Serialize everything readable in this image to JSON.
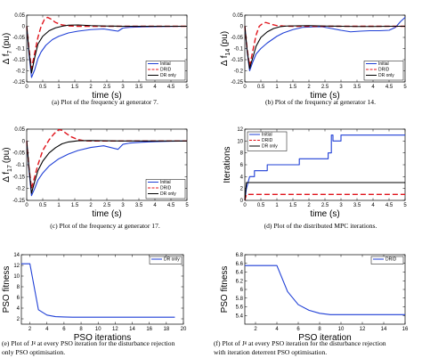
{
  "chart_data": [
    {
      "type": "line",
      "id": "a",
      "caption": "(a) Plot of the frequency at generator 7.",
      "xlabel": "time (s)",
      "ylabel": "Δ f",
      "ylabel_sub": "7",
      "ylabel_unit": "(pu)",
      "xlim": [
        0,
        5
      ],
      "ylim": [
        -0.25,
        0.05
      ],
      "xticks": [
        "0",
        "0.5",
        "1",
        "1.5",
        "2",
        "2.5",
        "3",
        "3.5",
        "4",
        "4.5",
        "5"
      ],
      "yticks": [
        "-0.25",
        "-0.2",
        "-0.15",
        "-0.1",
        "-0.05",
        "0",
        "0.05"
      ],
      "grid": false,
      "legend_position": "bottom-right",
      "series": [
        {
          "name": "Initial",
          "color": "#1f3fd6",
          "dash": "solid",
          "x": [
            0,
            0.07,
            0.15,
            0.25,
            0.35,
            0.45,
            0.6,
            0.8,
            1.0,
            1.3,
            1.6,
            2.0,
            2.4,
            2.85,
            3.0,
            3.2,
            3.6,
            4.0,
            4.5,
            5.0
          ],
          "y": [
            0,
            -0.12,
            -0.23,
            -0.195,
            -0.145,
            -0.115,
            -0.085,
            -0.06,
            -0.045,
            -0.03,
            -0.022,
            -0.015,
            -0.012,
            -0.022,
            -0.008,
            -0.005,
            -0.003,
            -0.002,
            -0.001,
            0
          ]
        },
        {
          "name": "DRID",
          "color": "#e0141c",
          "dash": "6,3",
          "x": [
            0,
            0.07,
            0.15,
            0.25,
            0.35,
            0.45,
            0.55,
            0.65,
            0.75,
            0.9,
            1.1,
            1.3,
            1.6,
            2.0,
            2.5,
            3.0,
            4.0,
            5.0
          ],
          "y": [
            0,
            -0.1,
            -0.19,
            -0.12,
            -0.05,
            0.0,
            0.03,
            0.04,
            0.033,
            0.017,
            0.006,
            0.002,
            0.0,
            0.0,
            0.0,
            0.0,
            0.0,
            0.0
          ]
        },
        {
          "name": "DR only",
          "color": "#000000",
          "dash": "solid",
          "x": [
            0,
            0.07,
            0.15,
            0.25,
            0.35,
            0.5,
            0.7,
            0.9,
            1.1,
            1.3,
            1.6,
            2.0,
            2.5,
            3.0,
            4.0,
            5.0
          ],
          "y": [
            0,
            -0.11,
            -0.21,
            -0.14,
            -0.08,
            -0.045,
            -0.02,
            -0.007,
            0.0,
            0.005,
            0.006,
            0.003,
            0.001,
            0.0,
            0.0,
            0.0
          ]
        }
      ]
    },
    {
      "type": "line",
      "id": "b",
      "caption": "(b) Plot of the frequency at generator 14.",
      "xlabel": "time (s)",
      "ylabel": "Δ f",
      "ylabel_sub": "14",
      "ylabel_unit": "(pu)",
      "xlim": [
        0,
        5
      ],
      "ylim": [
        -0.25,
        0.05
      ],
      "xticks": [
        "0",
        "0.5",
        "1",
        "1.5",
        "2",
        "2.5",
        "3",
        "3.5",
        "4",
        "4.5",
        "5"
      ],
      "yticks": [
        "-0.25",
        "-0.2",
        "-0.15",
        "-0.1",
        "-0.05",
        "0",
        "0.05"
      ],
      "grid": false,
      "legend_position": "bottom-right",
      "series": [
        {
          "name": "Initial",
          "color": "#1f3fd6",
          "dash": "solid",
          "x": [
            0,
            0.07,
            0.15,
            0.25,
            0.35,
            0.5,
            0.7,
            1.0,
            1.2,
            1.5,
            1.8,
            2.1,
            2.4,
            2.7,
            3.0,
            3.3,
            3.6,
            3.9,
            4.2,
            4.5,
            4.7,
            4.85,
            5.0
          ],
          "y": [
            0,
            -0.11,
            -0.2,
            -0.16,
            -0.125,
            -0.1,
            -0.075,
            -0.045,
            -0.03,
            -0.015,
            -0.005,
            -0.003,
            -0.002,
            -0.01,
            -0.018,
            -0.025,
            -0.022,
            -0.02,
            -0.02,
            -0.018,
            -0.005,
            0.02,
            0.04
          ]
        },
        {
          "name": "DRID",
          "color": "#e0141c",
          "dash": "6,3",
          "x": [
            0,
            0.07,
            0.15,
            0.25,
            0.35,
            0.45,
            0.55,
            0.65,
            0.75,
            0.85,
            1.0,
            1.2,
            1.5,
            2.0,
            3.0,
            4.0,
            5.0
          ],
          "y": [
            0,
            -0.1,
            -0.18,
            -0.11,
            -0.04,
            0.0,
            0.012,
            0.017,
            0.013,
            0.008,
            0.003,
            0.001,
            0.0,
            0.0,
            0.0,
            0.0,
            0.0
          ]
        },
        {
          "name": "DR only",
          "color": "#000000",
          "dash": "solid",
          "x": [
            0,
            0.07,
            0.15,
            0.25,
            0.35,
            0.5,
            0.7,
            0.9,
            1.1,
            1.3,
            1.6,
            2.0,
            2.5,
            3.0,
            3.5,
            4.0,
            4.5,
            5.0
          ],
          "y": [
            0,
            -0.105,
            -0.19,
            -0.14,
            -0.09,
            -0.05,
            -0.025,
            -0.01,
            -0.002,
            0.001,
            0.002,
            0.003,
            0.001,
            0.0,
            -0.001,
            -0.001,
            0.0,
            0.0
          ]
        }
      ]
    },
    {
      "type": "line",
      "id": "c",
      "caption": "(c) Plot of the frequency at generator 17.",
      "xlabel": "time (s)",
      "ylabel": "Δ f",
      "ylabel_sub": "17",
      "ylabel_unit": "(pu)",
      "xlim": [
        0,
        5
      ],
      "ylim": [
        -0.25,
        0.05
      ],
      "xticks": [
        "0",
        "0.5",
        "1",
        "1.5",
        "2",
        "2.5",
        "3",
        "3.5",
        "4",
        "4.5",
        "5"
      ],
      "yticks": [
        "-0.25",
        "-0.2",
        "-0.15",
        "-0.1",
        "-0.05",
        "0",
        "0.05"
      ],
      "grid": false,
      "legend_position": "bottom-right",
      "series": [
        {
          "name": "Initial",
          "color": "#1f3fd6",
          "dash": "solid",
          "x": [
            0,
            0.07,
            0.15,
            0.25,
            0.35,
            0.5,
            0.7,
            1.0,
            1.3,
            1.6,
            2.0,
            2.4,
            2.85,
            3.0,
            3.2,
            3.6,
            4.0,
            4.5,
            5.0
          ],
          "y": [
            0,
            -0.12,
            -0.23,
            -0.2,
            -0.165,
            -0.135,
            -0.105,
            -0.075,
            -0.055,
            -0.04,
            -0.027,
            -0.02,
            -0.035,
            -0.014,
            -0.009,
            -0.005,
            -0.003,
            -0.001,
            0.0
          ]
        },
        {
          "name": "DRID",
          "color": "#e0141c",
          "dash": "6,3",
          "x": [
            0,
            0.07,
            0.15,
            0.25,
            0.35,
            0.5,
            0.7,
            0.85,
            1.0,
            1.1,
            1.25,
            1.4,
            1.6,
            1.8,
            2.0,
            2.3,
            2.6,
            3.0,
            4.0,
            5.0
          ],
          "y": [
            0,
            -0.11,
            -0.2,
            -0.15,
            -0.1,
            -0.04,
            0.005,
            0.03,
            0.048,
            0.045,
            0.03,
            0.017,
            0.006,
            0.001,
            0.0,
            0.0,
            0.0,
            0.0,
            0.0,
            0.0
          ]
        },
        {
          "name": "DR only",
          "color": "#000000",
          "dash": "solid",
          "x": [
            0,
            0.07,
            0.15,
            0.25,
            0.35,
            0.5,
            0.7,
            0.9,
            1.1,
            1.3,
            1.6,
            2.0,
            2.5,
            3.0,
            4.0,
            5.0
          ],
          "y": [
            0,
            -0.11,
            -0.22,
            -0.17,
            -0.125,
            -0.085,
            -0.05,
            -0.028,
            -0.012,
            -0.004,
            0.001,
            0.002,
            0.001,
            0.0,
            0.0,
            0.0
          ]
        }
      ]
    },
    {
      "type": "line",
      "id": "d",
      "caption": "(d) Plot of the distributed MPC iterations.",
      "xlabel": "time (s)",
      "ylabel": "Iterations",
      "xlim": [
        0,
        5
      ],
      "ylim": [
        0,
        12
      ],
      "xticks": [
        "0",
        "0.5",
        "1",
        "1.5",
        "2",
        "2.5",
        "3",
        "3.5",
        "4",
        "4.5",
        "5"
      ],
      "yticks": [
        "0",
        "2",
        "4",
        "6",
        "8",
        "10",
        "12"
      ],
      "grid": false,
      "legend_position": "top-left",
      "series": [
        {
          "name": "Initial",
          "color": "#1f3fd6",
          "dash": "solid",
          "x": [
            0,
            0.05,
            0.1,
            0.15,
            0.3,
            0.3,
            0.7,
            0.7,
            1.0,
            1.0,
            1.3,
            1.3,
            1.7,
            1.7,
            2.6,
            2.6,
            2.7,
            2.7,
            2.75,
            2.75,
            3.0,
            3.0,
            5.0
          ],
          "y": [
            0,
            2,
            3,
            4,
            4,
            5,
            5,
            6,
            6,
            6,
            6,
            6,
            6,
            7,
            7,
            8,
            8,
            11,
            11,
            10,
            10,
            11,
            11
          ]
        },
        {
          "name": "DRID",
          "color": "#e0141c",
          "dash": "6,3",
          "x": [
            0,
            0.05,
            0.1,
            5.0
          ],
          "y": [
            0,
            1,
            1,
            1
          ]
        },
        {
          "name": "DR only",
          "color": "#000000",
          "dash": "solid",
          "x": [
            0,
            0.05,
            0.1,
            5.0
          ],
          "y": [
            0,
            3,
            3,
            3
          ]
        }
      ]
    },
    {
      "type": "line",
      "id": "e",
      "caption_lines": [
        "(e) Plot of Jᵍ at every PSO iteration for the disturbance rejection",
        "only PSO optimisation."
      ],
      "xlabel": "PSO iterations",
      "ylabel": "PSO fitness",
      "xlim": [
        1,
        20
      ],
      "ylim": [
        1,
        14
      ],
      "xticks": [
        "2",
        "4",
        "6",
        "8",
        "10",
        "12",
        "14",
        "16",
        "18",
        "20"
      ],
      "yticks": [
        "2",
        "4",
        "6",
        "8",
        "10",
        "12",
        "14"
      ],
      "grid": false,
      "legend_position": "top-right",
      "series": [
        {
          "name": "DR only",
          "color": "#1f3fd6",
          "dash": "solid",
          "x": [
            1,
            2,
            3,
            4,
            5,
            6,
            7,
            8,
            9,
            10,
            11,
            12,
            13,
            14,
            15,
            16,
            17,
            18,
            19
          ],
          "y": [
            12.3,
            12.3,
            3.7,
            2.7,
            2.4,
            2.35,
            2.3,
            2.3,
            2.3,
            2.3,
            2.3,
            2.3,
            2.3,
            2.3,
            2.3,
            2.3,
            2.3,
            2.3,
            2.3
          ]
        }
      ]
    },
    {
      "type": "line",
      "id": "f",
      "caption_lines": [
        "(f) Plot of Jᵍ at every PSO iteration for the disturbance rejection",
        "with iteration deterrent PSO optimisation."
      ],
      "xlabel": "PSO iteration",
      "ylabel": "PSO fitness",
      "xlim": [
        1,
        16
      ],
      "ylim": [
        5.2,
        6.8
      ],
      "xticks": [
        "2",
        "4",
        "6",
        "8",
        "10",
        "12",
        "14",
        "16"
      ],
      "yticks": [
        "5.4",
        "5.6",
        "5.8",
        "6",
        "6.2",
        "6.4",
        "6.6",
        "6.8"
      ],
      "grid": false,
      "legend_position": "top-right",
      "series": [
        {
          "name": "DRID",
          "color": "#1f3fd6",
          "dash": "solid",
          "x": [
            1,
            2,
            3,
            4,
            5,
            6,
            7,
            8,
            9,
            10,
            11,
            12,
            13,
            14,
            15,
            16
          ],
          "y": [
            6.55,
            6.55,
            6.55,
            6.55,
            5.95,
            5.65,
            5.52,
            5.45,
            5.42,
            5.42,
            5.42,
            5.42,
            5.42,
            5.42,
            5.42,
            5.42
          ]
        }
      ]
    }
  ]
}
